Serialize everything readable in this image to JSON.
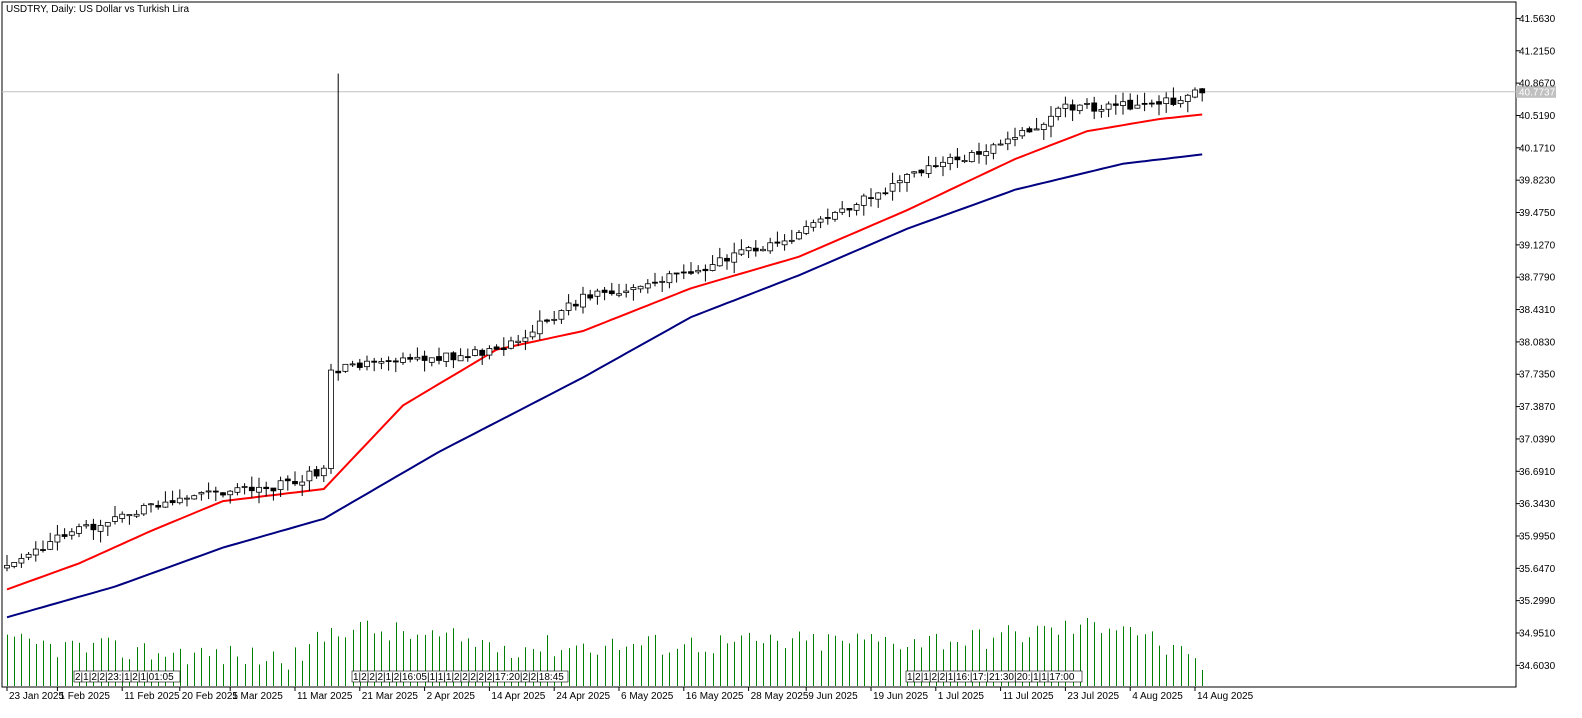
{
  "header": {
    "title": "USDTRY, Daily:  US Dollar vs Turkish Lira"
  },
  "colors": {
    "background": "#ffffff",
    "candle_up_fill": "#ffffff",
    "candle_down_fill": "#000000",
    "candle_outline": "#000000",
    "ma_fast": "#ff0000",
    "ma_slow": "#000080",
    "volume": "#008000",
    "bid_line": "#c0c0c0",
    "price_tag_bg": "#c0c0c0"
  },
  "chart_data": {
    "type": "candlestick",
    "title": "USDTRY, Daily:  US Dollar vs Turkish Lira",
    "xlabel": "",
    "ylabel": "",
    "ylim": [
      34.37,
      41.74
    ],
    "y_ticks": [
      "41.5630",
      "41.2150",
      "40.8670",
      "40.5190",
      "40.1710",
      "39.8230",
      "39.4750",
      "39.1270",
      "38.7790",
      "38.4310",
      "38.0830",
      "37.7350",
      "37.3870",
      "37.0390",
      "36.6910",
      "36.3430",
      "35.9950",
      "35.6470",
      "35.2990",
      "34.9510",
      "34.6030"
    ],
    "x_ticks": [
      {
        "label": "23 Jan 2025",
        "index": 0
      },
      {
        "label": "1 Feb 2025",
        "index": 7
      },
      {
        "label": "11 Feb 2025",
        "index": 16
      },
      {
        "label": "20 Feb 2025",
        "index": 24
      },
      {
        "label": "1 Mar 2025",
        "index": 31
      },
      {
        "label": "11 Mar 2025",
        "index": 40
      },
      {
        "label": "21 Mar 2025",
        "index": 49
      },
      {
        "label": "2 Apr 2025",
        "index": 58
      },
      {
        "label": "14 Apr 2025",
        "index": 67
      },
      {
        "label": "24 Apr 2025",
        "index": 76
      },
      {
        "label": "6 May 2025",
        "index": 85
      },
      {
        "label": "16 May 2025",
        "index": 94
      },
      {
        "label": "28 May 2025",
        "index": 103
      },
      {
        "label": "9 Jun 2025",
        "index": 111
      },
      {
        "label": "19 Jun 2025",
        "index": 120
      },
      {
        "label": "1 Jul 2025",
        "index": 129
      },
      {
        "label": "11 Jul 2025",
        "index": 138
      },
      {
        "label": "23 Jul 2025",
        "index": 147
      },
      {
        "label": "4 Aug 2025",
        "index": 156
      },
      {
        "label": "14 Aug 2025",
        "index": 165
      }
    ],
    "current_price": 40.7737,
    "current_price_label": "40.7737",
    "spike": {
      "index": 46,
      "high": 40.97
    },
    "event_markers": [
      {
        "index": 9,
        "text": "2|1|2|2|23:|1|2|1|01:05",
        "x_from": 74,
        "x_to": 180
      },
      {
        "index": 44,
        "text": "1|2|2|2|1|2|16:05|1|1|1|2|2|2|2|2|17:20|2|2|18:45",
        "x_from": 352,
        "x_to": 568
      },
      {
        "index": 114,
        "text": "1|2|1|2|2|1|16:|17:|21:30|20:|1|1|17:00",
        "x_from": 906,
        "x_to": 1082
      }
    ],
    "volume": [
      {
        "index": 0,
        "value": 0.62
      },
      {
        "index": 12,
        "value": 0.55
      },
      {
        "index": 40,
        "value": 0.4
      },
      {
        "index": 46,
        "value": 0.88
      },
      {
        "index": 70,
        "value": 0.58
      },
      {
        "index": 100,
        "value": 0.63
      },
      {
        "index": 135,
        "value": 0.7
      },
      {
        "index": 155,
        "value": 0.95
      },
      {
        "index": 165,
        "value": 0.3
      }
    ],
    "series": [
      {
        "name": "",
        "kind": "ohlc",
        "points": [
          {
            "i": 0,
            "price": 35.66
          },
          {
            "i": 8,
            "price": 36.0
          },
          {
            "i": 20,
            "price": 36.3
          },
          {
            "i": 26,
            "price": 36.45
          },
          {
            "i": 36,
            "price": 36.5
          },
          {
            "i": 44,
            "price": 36.69
          },
          {
            "i": 45,
            "price": 37.78
          },
          {
            "i": 55,
            "price": 37.88
          },
          {
            "i": 68,
            "price": 37.98
          },
          {
            "i": 80,
            "price": 38.55
          },
          {
            "i": 95,
            "price": 38.83
          },
          {
            "i": 110,
            "price": 39.25
          },
          {
            "i": 125,
            "price": 39.85
          },
          {
            "i": 140,
            "price": 40.28
          },
          {
            "i": 147,
            "price": 40.6
          },
          {
            "i": 160,
            "price": 40.64
          },
          {
            "i": 166,
            "price": 40.77
          }
        ]
      },
      {
        "name": "",
        "kind": "ma_fast",
        "points": [
          {
            "i": 0,
            "price": 35.42
          },
          {
            "i": 10,
            "price": 35.7
          },
          {
            "i": 20,
            "price": 36.05
          },
          {
            "i": 30,
            "price": 36.37
          },
          {
            "i": 44,
            "price": 36.5
          },
          {
            "i": 55,
            "price": 37.4
          },
          {
            "i": 68,
            "price": 38.0
          },
          {
            "i": 80,
            "price": 38.2
          },
          {
            "i": 95,
            "price": 38.66
          },
          {
            "i": 110,
            "price": 39.0
          },
          {
            "i": 125,
            "price": 39.5
          },
          {
            "i": 140,
            "price": 40.05
          },
          {
            "i": 150,
            "price": 40.35
          },
          {
            "i": 160,
            "price": 40.48
          },
          {
            "i": 166,
            "price": 40.53
          }
        ]
      },
      {
        "name": "",
        "kind": "ma_slow",
        "points": [
          {
            "i": 0,
            "price": 35.12
          },
          {
            "i": 15,
            "price": 35.45
          },
          {
            "i": 30,
            "price": 35.87
          },
          {
            "i": 44,
            "price": 36.18
          },
          {
            "i": 60,
            "price": 36.9
          },
          {
            "i": 80,
            "price": 37.7
          },
          {
            "i": 95,
            "price": 38.35
          },
          {
            "i": 110,
            "price": 38.8
          },
          {
            "i": 125,
            "price": 39.3
          },
          {
            "i": 140,
            "price": 39.72
          },
          {
            "i": 155,
            "price": 40.0
          },
          {
            "i": 166,
            "price": 40.1
          }
        ]
      }
    ]
  }
}
